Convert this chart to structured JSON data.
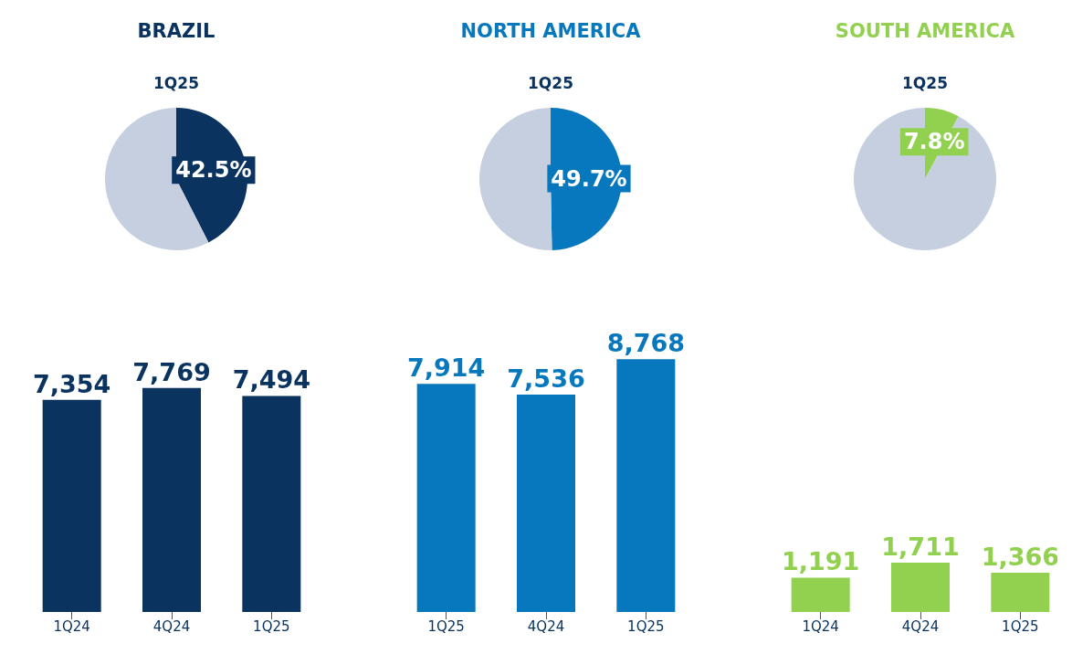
{
  "chart_data": [
    {
      "type": "pie",
      "title": "BRAZIL",
      "subtitle": "1Q25",
      "categories": [
        null,
        null
      ],
      "values": [
        42.5,
        57.5
      ],
      "colors": [
        "#0a3360",
        "#c5cfe0"
      ],
      "value_labels": [
        "42.5%",
        null
      ]
    },
    {
      "type": "pie",
      "title": "NORTH AMERICA",
      "subtitle": "1Q25",
      "categories": [
        null,
        null
      ],
      "values": [
        49.7,
        50.3
      ],
      "colors": [
        "#0878be",
        "#c5cfe0"
      ],
      "value_labels": [
        "49.7%",
        null
      ]
    },
    {
      "type": "pie",
      "title": "SOUTH AMERICA",
      "subtitle": "1Q25",
      "categories": [
        null,
        null
      ],
      "values": [
        7.8,
        92.2
      ],
      "colors": [
        "#92d050",
        "#c5cfe0"
      ],
      "value_labels": [
        "7.8%",
        null
      ]
    },
    {
      "type": "bar",
      "categories": [
        "1Q24",
        "4Q24",
        "1Q25"
      ],
      "values": [
        7354,
        7769,
        7494
      ],
      "color": "#0a3360",
      "value_labels": [
        "7,354",
        "7,769",
        "7,494"
      ]
    },
    {
      "type": "bar",
      "categories": [
        "1Q25",
        "4Q24",
        "1Q25"
      ],
      "values": [
        7914,
        7536,
        8768
      ],
      "color": "#0878be",
      "value_labels": [
        "7,914",
        "7,536",
        "8,768"
      ]
    },
    {
      "type": "bar",
      "categories": [
        "1Q24",
        "4Q24",
        "1Q25"
      ],
      "values": [
        1191,
        1711,
        1366
      ],
      "color": "#92d050",
      "value_labels": [
        "1,191",
        "1,711",
        "1,366"
      ]
    }
  ]
}
